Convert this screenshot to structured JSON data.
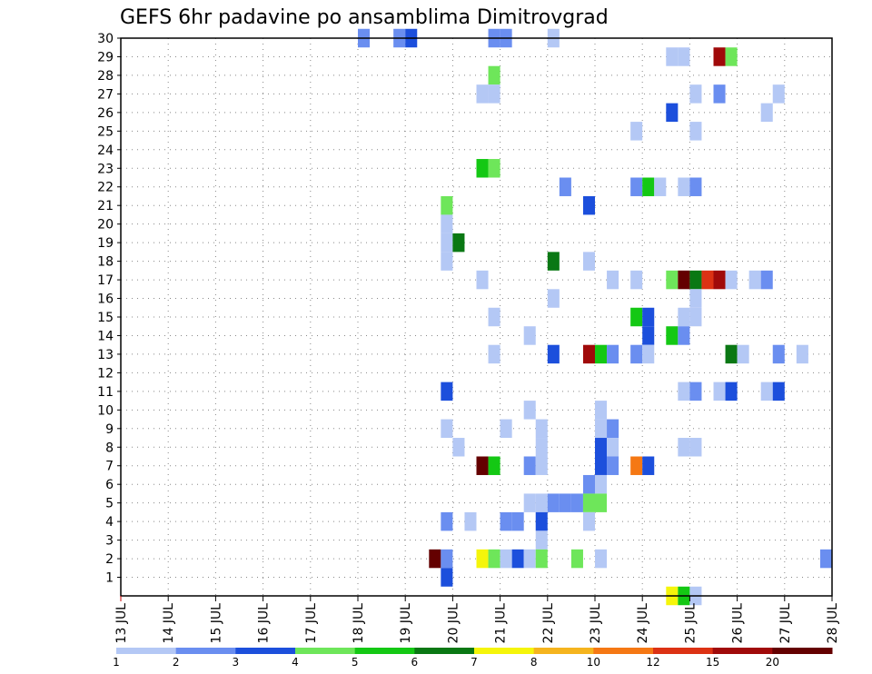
{
  "chart_data": {
    "type": "heatmap",
    "title": "GEFS 6hr padavine po ansamblima Dimitrovgrad",
    "x_tick_labels": [
      "13 JUL",
      "14 JUL",
      "15 JUL",
      "16 JUL",
      "17 JUL",
      "18 JUL",
      "19 JUL",
      "20 JUL",
      "21 JUL",
      "22 JUL",
      "23 JUL",
      "24 JUL",
      "25 JUL",
      "26 JUL",
      "27 JUL",
      "28 JUL"
    ],
    "y_tick_labels": [
      "1",
      "2",
      "3",
      "4",
      "5",
      "6",
      "7",
      "8",
      "9",
      "10",
      "11",
      "12",
      "13",
      "14",
      "15",
      "16",
      "17",
      "18",
      "19",
      "20",
      "21",
      "22",
      "23",
      "24",
      "25",
      "26",
      "27",
      "28",
      "29",
      "30"
    ],
    "x_unit": "days since 13 JUL (6-hourly steps)",
    "xlim": [
      0,
      15
    ],
    "ylim": [
      0,
      30
    ],
    "grid": true,
    "legend": {
      "placement": "bottom",
      "labels": [
        "1",
        "2",
        "3",
        "4",
        "5",
        "6",
        "7",
        "8",
        "10",
        "12",
        "15",
        "20"
      ],
      "colors": [
        "#b4c8f5",
        "#6a8ef0",
        "#1c4fdc",
        "#6ee65a",
        "#14c814",
        "#0a7814",
        "#f5f50a",
        "#f5b41e",
        "#f57814",
        "#dc3214",
        "#a00a0a",
        "#640000"
      ]
    },
    "cells": [
      {
        "t": 5.0,
        "m": 30,
        "c": 1
      },
      {
        "t": 5.75,
        "m": 30,
        "c": 1
      },
      {
        "t": 6.0,
        "m": 30,
        "c": 2
      },
      {
        "t": 7.75,
        "m": 30,
        "c": 1
      },
      {
        "t": 8.0,
        "m": 30,
        "c": 1
      },
      {
        "t": 9.0,
        "m": 30,
        "c": 0
      },
      {
        "t": 11.5,
        "m": 29,
        "c": 0
      },
      {
        "t": 11.75,
        "m": 29,
        "c": 0
      },
      {
        "t": 12.5,
        "m": 29,
        "c": 10
      },
      {
        "t": 12.75,
        "m": 29,
        "c": 3
      },
      {
        "t": 7.75,
        "m": 28,
        "c": 3
      },
      {
        "t": 7.5,
        "m": 27,
        "c": 0
      },
      {
        "t": 7.75,
        "m": 27,
        "c": 0
      },
      {
        "t": 12.0,
        "m": 27,
        "c": 0
      },
      {
        "t": 12.5,
        "m": 27,
        "c": 1
      },
      {
        "t": 13.75,
        "m": 27,
        "c": 0
      },
      {
        "t": 11.5,
        "m": 26,
        "c": 2
      },
      {
        "t": 13.5,
        "m": 26,
        "c": 0
      },
      {
        "t": 10.75,
        "m": 25,
        "c": 0
      },
      {
        "t": 12.0,
        "m": 25,
        "c": 0
      },
      {
        "t": 7.5,
        "m": 23,
        "c": 4
      },
      {
        "t": 7.75,
        "m": 23,
        "c": 3
      },
      {
        "t": 9.25,
        "m": 22,
        "c": 1
      },
      {
        "t": 10.75,
        "m": 22,
        "c": 1
      },
      {
        "t": 11.0,
        "m": 22,
        "c": 4
      },
      {
        "t": 11.25,
        "m": 22,
        "c": 0
      },
      {
        "t": 11.75,
        "m": 22,
        "c": 0
      },
      {
        "t": 12.0,
        "m": 22,
        "c": 1
      },
      {
        "t": 6.75,
        "m": 21,
        "c": 3
      },
      {
        "t": 9.75,
        "m": 21,
        "c": 2
      },
      {
        "t": 6.75,
        "m": 20,
        "c": 0
      },
      {
        "t": 6.75,
        "m": 19,
        "c": 0
      },
      {
        "t": 7.0,
        "m": 19,
        "c": 5
      },
      {
        "t": 6.75,
        "m": 18,
        "c": 0
      },
      {
        "t": 9.0,
        "m": 18,
        "c": 5
      },
      {
        "t": 9.75,
        "m": 18,
        "c": 0
      },
      {
        "t": 7.5,
        "m": 17,
        "c": 0
      },
      {
        "t": 10.25,
        "m": 17,
        "c": 0
      },
      {
        "t": 10.75,
        "m": 17,
        "c": 0
      },
      {
        "t": 11.5,
        "m": 17,
        "c": 3
      },
      {
        "t": 11.75,
        "m": 17,
        "c": 11
      },
      {
        "t": 12.0,
        "m": 17,
        "c": 5
      },
      {
        "t": 12.25,
        "m": 17,
        "c": 9
      },
      {
        "t": 12.5,
        "m": 17,
        "c": 10
      },
      {
        "t": 12.75,
        "m": 17,
        "c": 0
      },
      {
        "t": 13.25,
        "m": 17,
        "c": 0
      },
      {
        "t": 13.5,
        "m": 17,
        "c": 1
      },
      {
        "t": 9.0,
        "m": 16,
        "c": 0
      },
      {
        "t": 12.0,
        "m": 16,
        "c": 0
      },
      {
        "t": 7.75,
        "m": 15,
        "c": 0
      },
      {
        "t": 10.75,
        "m": 15,
        "c": 4
      },
      {
        "t": 11.0,
        "m": 15,
        "c": 2
      },
      {
        "t": 11.75,
        "m": 15,
        "c": 0
      },
      {
        "t": 12.0,
        "m": 15,
        "c": 0
      },
      {
        "t": 8.5,
        "m": 14,
        "c": 0
      },
      {
        "t": 11.0,
        "m": 14,
        "c": 2
      },
      {
        "t": 11.5,
        "m": 14,
        "c": 4
      },
      {
        "t": 11.75,
        "m": 14,
        "c": 1
      },
      {
        "t": 7.75,
        "m": 13,
        "c": 0
      },
      {
        "t": 9.0,
        "m": 13,
        "c": 2
      },
      {
        "t": 9.75,
        "m": 13,
        "c": 10
      },
      {
        "t": 10.0,
        "m": 13,
        "c": 4
      },
      {
        "t": 10.25,
        "m": 13,
        "c": 1
      },
      {
        "t": 10.75,
        "m": 13,
        "c": 1
      },
      {
        "t": 11.0,
        "m": 13,
        "c": 0
      },
      {
        "t": 12.75,
        "m": 13,
        "c": 5
      },
      {
        "t": 13.0,
        "m": 13,
        "c": 0
      },
      {
        "t": 13.75,
        "m": 13,
        "c": 1
      },
      {
        "t": 14.25,
        "m": 13,
        "c": 0
      },
      {
        "t": 6.75,
        "m": 11,
        "c": 2
      },
      {
        "t": 11.75,
        "m": 11,
        "c": 0
      },
      {
        "t": 12.0,
        "m": 11,
        "c": 1
      },
      {
        "t": 12.5,
        "m": 11,
        "c": 0
      },
      {
        "t": 12.75,
        "m": 11,
        "c": 2
      },
      {
        "t": 13.5,
        "m": 11,
        "c": 0
      },
      {
        "t": 13.75,
        "m": 11,
        "c": 2
      },
      {
        "t": 8.5,
        "m": 10,
        "c": 0
      },
      {
        "t": 10.0,
        "m": 10,
        "c": 0
      },
      {
        "t": 6.75,
        "m": 9,
        "c": 0
      },
      {
        "t": 8.0,
        "m": 9,
        "c": 0
      },
      {
        "t": 8.75,
        "m": 9,
        "c": 0
      },
      {
        "t": 10.0,
        "m": 9,
        "c": 0
      },
      {
        "t": 10.25,
        "m": 9,
        "c": 1
      },
      {
        "t": 7.0,
        "m": 8,
        "c": 0
      },
      {
        "t": 8.75,
        "m": 8,
        "c": 0
      },
      {
        "t": 10.0,
        "m": 8,
        "c": 2
      },
      {
        "t": 10.25,
        "m": 8,
        "c": 0
      },
      {
        "t": 11.75,
        "m": 8,
        "c": 0
      },
      {
        "t": 12.0,
        "m": 8,
        "c": 0
      },
      {
        "t": 7.5,
        "m": 7,
        "c": 11
      },
      {
        "t": 7.75,
        "m": 7,
        "c": 4
      },
      {
        "t": 8.5,
        "m": 7,
        "c": 1
      },
      {
        "t": 8.75,
        "m": 7,
        "c": 0
      },
      {
        "t": 10.0,
        "m": 7,
        "c": 2
      },
      {
        "t": 10.25,
        "m": 7,
        "c": 1
      },
      {
        "t": 10.75,
        "m": 7,
        "c": 8
      },
      {
        "t": 11.0,
        "m": 7,
        "c": 2
      },
      {
        "t": 9.75,
        "m": 6,
        "c": 1
      },
      {
        "t": 10.0,
        "m": 6,
        "c": 0
      },
      {
        "t": 8.5,
        "m": 5,
        "c": 0
      },
      {
        "t": 8.75,
        "m": 5,
        "c": 0
      },
      {
        "t": 9.0,
        "m": 5,
        "c": 1
      },
      {
        "t": 9.25,
        "m": 5,
        "c": 1
      },
      {
        "t": 9.5,
        "m": 5,
        "c": 1
      },
      {
        "t": 9.75,
        "m": 5,
        "c": 3
      },
      {
        "t": 10.0,
        "m": 5,
        "c": 3
      },
      {
        "t": 6.75,
        "m": 4,
        "c": 1
      },
      {
        "t": 7.25,
        "m": 4,
        "c": 0
      },
      {
        "t": 8.0,
        "m": 4,
        "c": 1
      },
      {
        "t": 8.25,
        "m": 4,
        "c": 1
      },
      {
        "t": 8.75,
        "m": 4,
        "c": 2
      },
      {
        "t": 9.75,
        "m": 4,
        "c": 0
      },
      {
        "t": 8.75,
        "m": 3,
        "c": 0
      },
      {
        "t": 6.5,
        "m": 2,
        "c": 11
      },
      {
        "t": 6.75,
        "m": 2,
        "c": 1
      },
      {
        "t": 7.5,
        "m": 2,
        "c": 6
      },
      {
        "t": 7.75,
        "m": 2,
        "c": 3
      },
      {
        "t": 8.0,
        "m": 2,
        "c": 0
      },
      {
        "t": 8.25,
        "m": 2,
        "c": 2
      },
      {
        "t": 8.5,
        "m": 2,
        "c": 0
      },
      {
        "t": 8.75,
        "m": 2,
        "c": 3
      },
      {
        "t": 9.5,
        "m": 2,
        "c": 3
      },
      {
        "t": 10.0,
        "m": 2,
        "c": 0
      },
      {
        "t": 14.75,
        "m": 2,
        "c": 1
      },
      {
        "t": 6.75,
        "m": 1,
        "c": 2
      },
      {
        "t": 11.5,
        "m": 0,
        "c": 6
      },
      {
        "t": 11.75,
        "m": 0,
        "c": 4
      },
      {
        "t": 12.0,
        "m": 0,
        "c": 0
      }
    ]
  }
}
